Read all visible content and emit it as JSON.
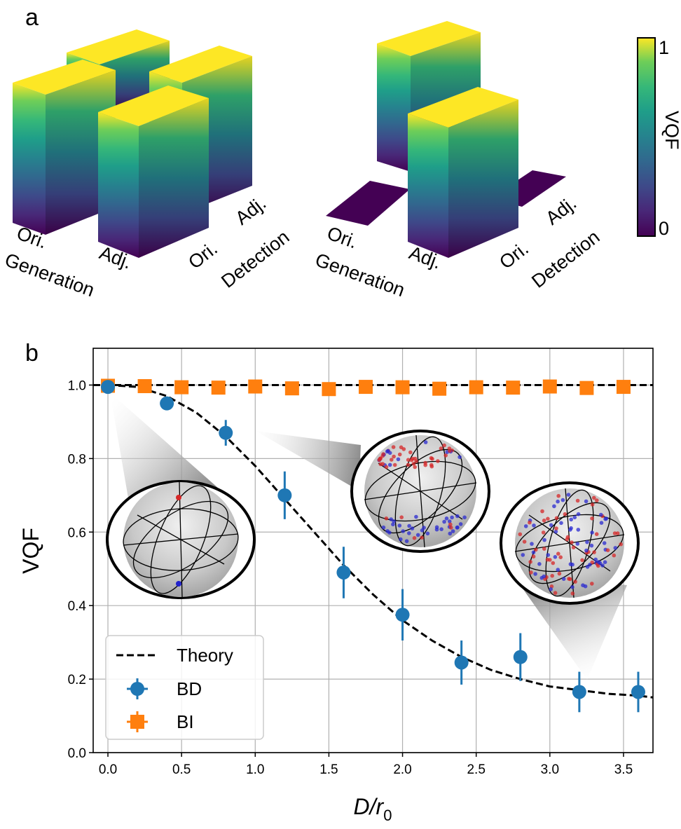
{
  "panel_a_label": "a",
  "panel_b_label": "b",
  "chart_data": [
    {
      "type": "bar3d",
      "xlabel": "Generation",
      "ylabel": "Detection",
      "x_categories": [
        "Ori.",
        "Adj."
      ],
      "y_categories": [
        "Ori.",
        "Adj."
      ],
      "colorbar": {
        "label": "VQF",
        "range": [
          0,
          1
        ],
        "tick_labels": [
          "0",
          "1"
        ],
        "colormap": "viridis"
      },
      "plots": [
        {
          "values": [
            [
              1,
              1
            ],
            [
              1,
              1
            ]
          ]
        },
        {
          "values": [
            [
              1,
              0
            ],
            [
              0,
              1
            ]
          ]
        }
      ]
    },
    {
      "type": "scatter",
      "xlabel": "D/r",
      "xlabel_sub": "0",
      "ylabel": "VQF",
      "xlim": [
        -0.1,
        3.7
      ],
      "ylim": [
        0,
        1.1
      ],
      "x_ticks": [
        "0.0",
        "0.5",
        "1.0",
        "1.5",
        "2.0",
        "2.5",
        "3.0",
        "3.5"
      ],
      "y_ticks": [
        "0.0",
        "0.2",
        "0.4",
        "0.6",
        "0.8",
        "1.0"
      ],
      "grid": true,
      "legend_position": "lower-left",
      "series": [
        {
          "name": "Theory",
          "style": "dashed-line",
          "color": "#000000",
          "constant": 1.0,
          "x": [
            0,
            0.2,
            0.4,
            0.6,
            0.8,
            1.0,
            1.2,
            1.4,
            1.6,
            1.8,
            2.0,
            2.2,
            2.4,
            2.6,
            2.8,
            3.0,
            3.2,
            3.4,
            3.6,
            3.7
          ],
          "y": [
            1.0,
            0.995,
            0.97,
            0.925,
            0.86,
            0.78,
            0.69,
            0.6,
            0.51,
            0.43,
            0.36,
            0.305,
            0.26,
            0.225,
            0.2,
            0.18,
            0.17,
            0.16,
            0.155,
            0.15
          ]
        },
        {
          "name": "BD",
          "marker": "circle",
          "color": "#1f77b4",
          "x": [
            0.0,
            0.4,
            0.8,
            1.2,
            1.6,
            2.0,
            2.4,
            2.8,
            3.2,
            3.6
          ],
          "y": [
            0.995,
            0.95,
            0.87,
            0.7,
            0.49,
            0.375,
            0.245,
            0.26,
            0.165,
            0.165
          ],
          "err": [
            0.005,
            0.01,
            0.035,
            0.065,
            0.07,
            0.07,
            0.06,
            0.065,
            0.055,
            0.055
          ]
        },
        {
          "name": "BI",
          "marker": "square",
          "color": "#ff7f0e",
          "x": [
            0.0,
            0.25,
            0.5,
            0.75,
            1.0,
            1.25,
            1.5,
            1.75,
            2.0,
            2.25,
            2.5,
            2.75,
            3.0,
            3.25,
            3.5
          ],
          "y": [
            0.998,
            0.997,
            0.994,
            0.993,
            0.996,
            0.991,
            0.989,
            0.995,
            0.994,
            0.99,
            0.994,
            0.993,
            0.996,
            0.992,
            0.995
          ],
          "err": [
            0.005,
            0.005,
            0.005,
            0.005,
            0.005,
            0.005,
            0.005,
            0.005,
            0.005,
            0.005,
            0.005,
            0.005,
            0.005,
            0.005,
            0.005
          ]
        }
      ]
    }
  ]
}
